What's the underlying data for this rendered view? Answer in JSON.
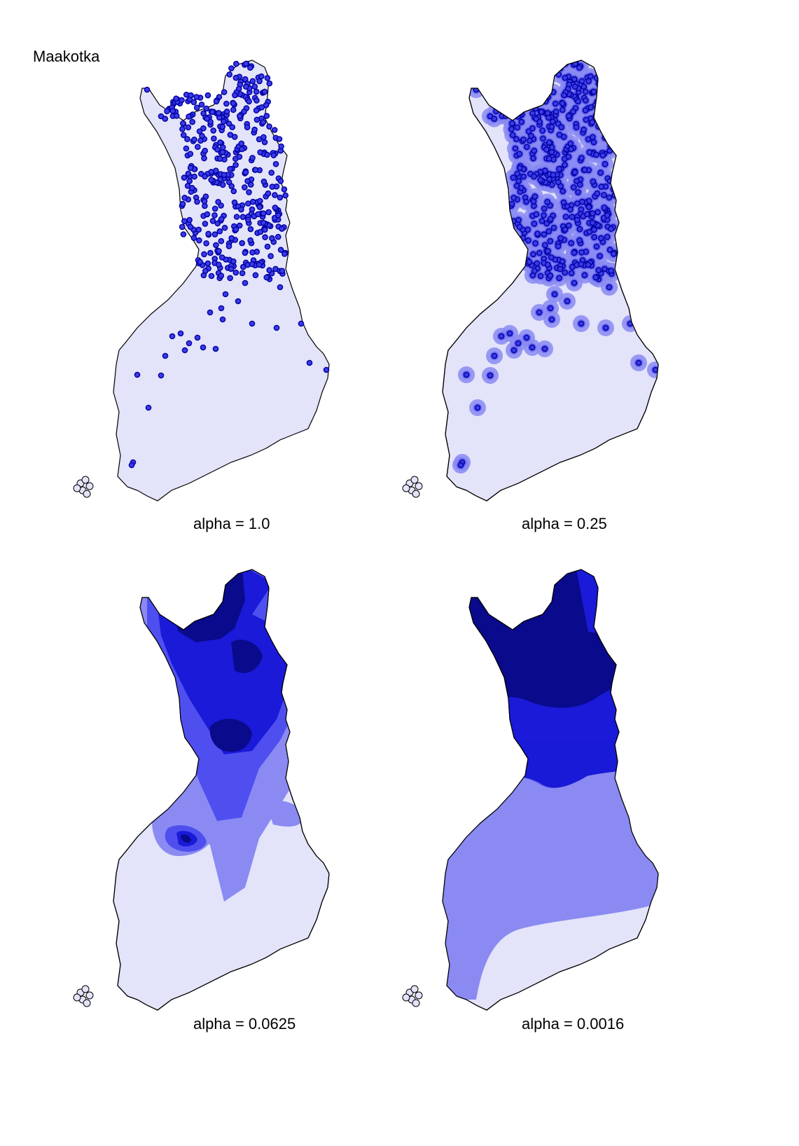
{
  "title": "Maakotka",
  "colors": {
    "land": "#e3e3fa",
    "outline": "#000000",
    "level1": "#8a8af2",
    "level2": "#4f4ff0",
    "level3": "#1a1ad8",
    "level4": "#0a0a8c",
    "dot_fill": "#3a3ae8",
    "dot_ring": "#0000a0"
  },
  "panels": [
    {
      "caption": "alpha = 1.0"
    },
    {
      "caption": "alpha = 0.25"
    },
    {
      "caption": "alpha = 0.0625"
    },
    {
      "caption": "alpha = 0.0016"
    }
  ]
}
